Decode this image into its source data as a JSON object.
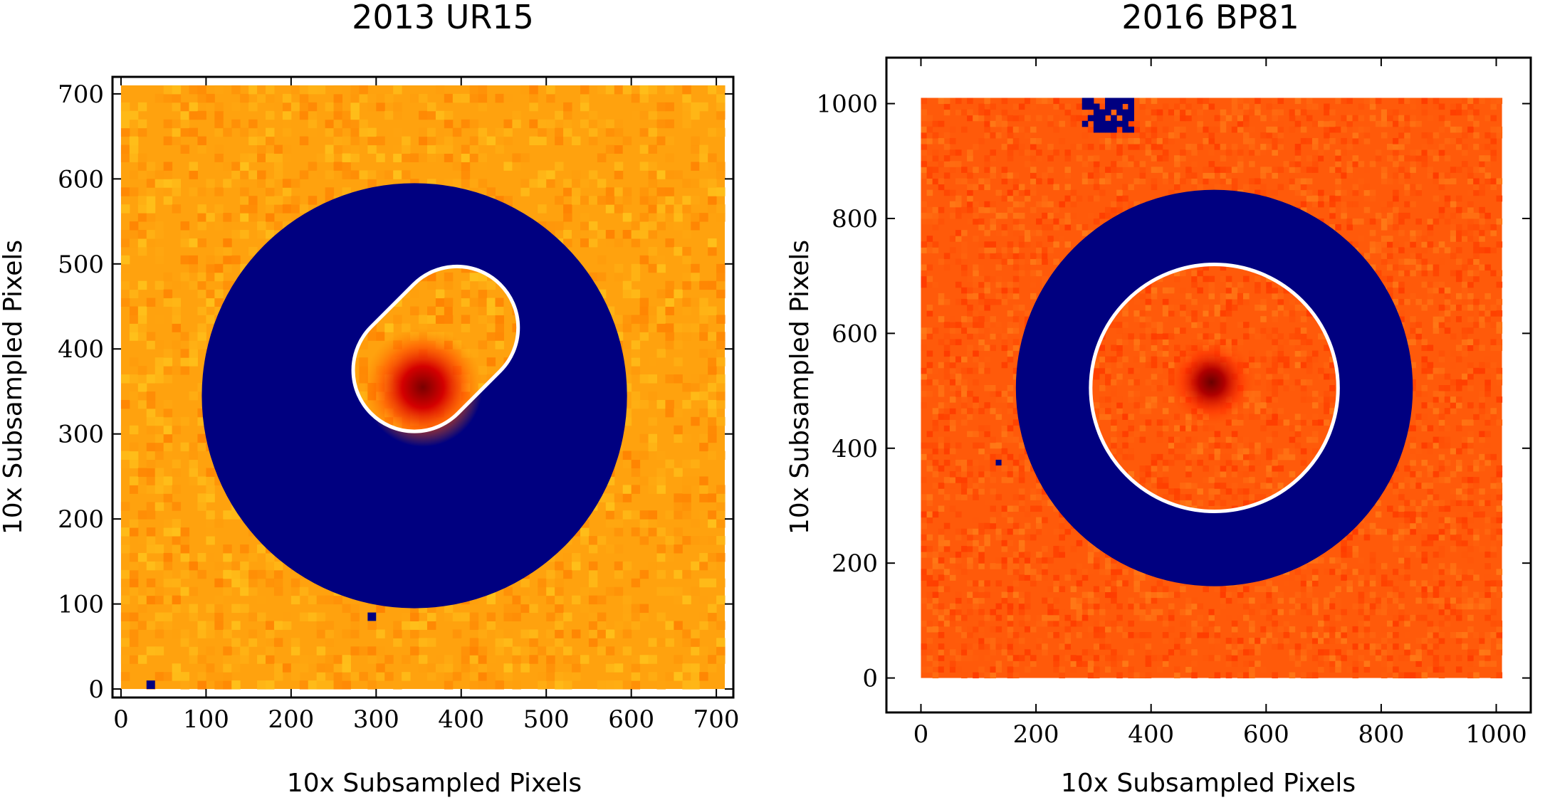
{
  "chart_data": [
    {
      "type": "heatmap",
      "title": "2013 UR15",
      "xlabel": "10x Subsampled Pixels",
      "ylabel": "10x Subsampled Pixels",
      "xlim": [
        -10,
        720
      ],
      "ylim": [
        -10,
        720
      ],
      "xticks": [
        0,
        100,
        200,
        300,
        400,
        500,
        600,
        700
      ],
      "yticks": [
        0,
        100,
        200,
        300,
        400,
        500,
        600,
        700
      ],
      "image_extent": [
        0,
        710,
        0,
        710
      ],
      "background_color": "#ffa20e",
      "mask_color": "#000080",
      "outer_mask_circle": {
        "cx": 345,
        "cy": 345,
        "r": 250
      },
      "aperture_capsule": {
        "x1": 345,
        "y1": 375,
        "x2": 395,
        "y2": 425,
        "r": 72,
        "color": "#ffffff"
      },
      "source_peak": {
        "x": 355,
        "y": 355
      },
      "bad_pixels": [
        [
          35,
          5
        ],
        [
          295,
          85
        ]
      ]
    },
    {
      "type": "heatmap",
      "title": "2016 BP81",
      "xlabel": "10x Subsampled Pixels",
      "ylabel": "10x Subsampled Pixels",
      "xlim": [
        -60,
        1060
      ],
      "ylim": [
        -60,
        1080
      ],
      "xticks": [
        0,
        200,
        400,
        600,
        800,
        1000
      ],
      "yticks": [
        0,
        200,
        400,
        600,
        800,
        1000
      ],
      "image_extent": [
        0,
        1010,
        0,
        1010
      ],
      "background_color": "#ff5a0a",
      "mask_color": "#000080",
      "outer_mask_circle": {
        "cx": 510,
        "cy": 505,
        "r": 345
      },
      "aperture_ellipse": {
        "cx": 510,
        "cy": 505,
        "rx": 215,
        "ry": 215,
        "color": "#ffffff"
      },
      "source_peak": {
        "x": 505,
        "y": 515
      },
      "bad_pixels": [
        [
          135,
          375
        ]
      ],
      "masked_cluster": {
        "x1": 280,
        "x2": 370,
        "y1": 950,
        "y2": 1010
      }
    }
  ]
}
